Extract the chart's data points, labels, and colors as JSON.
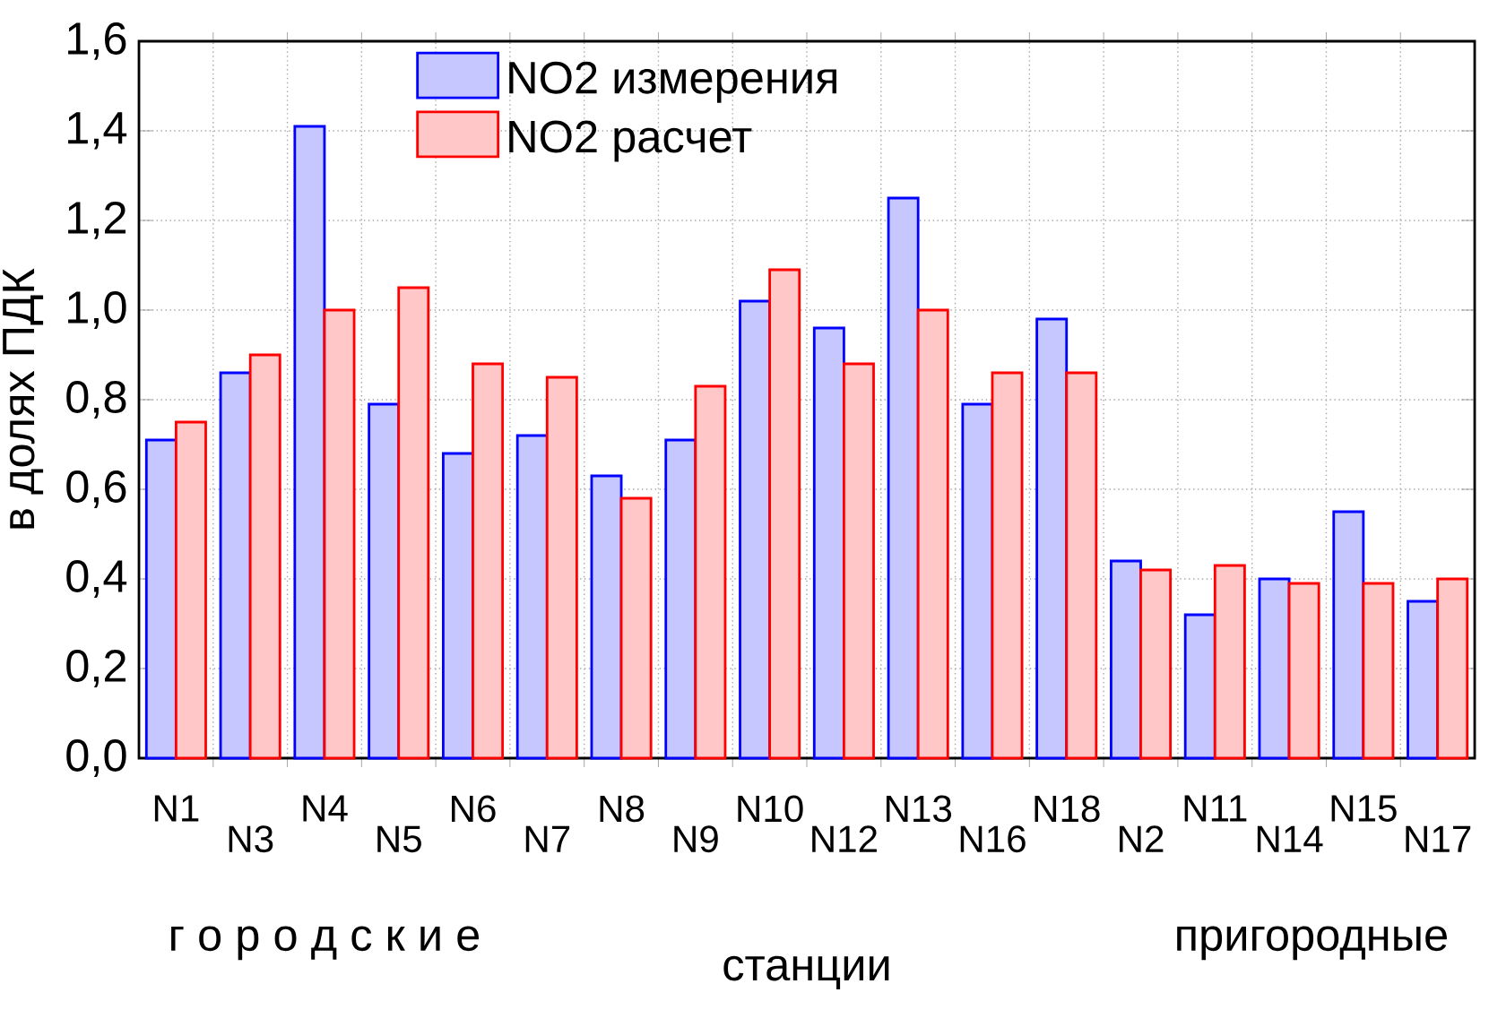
{
  "chart_data": {
    "type": "bar",
    "xlabel": "станции",
    "ylabel": "в долях ПДК",
    "categories": [
      "N1",
      "N3",
      "N4",
      "N5",
      "N6",
      "N7",
      "N8",
      "N9",
      "N10",
      "N12",
      "N13",
      "N16",
      "N18",
      "N2",
      "N11",
      "N14",
      "N15",
      "N17"
    ],
    "series": [
      {
        "name": "NO2 измерения",
        "color": "#0000ff",
        "values": [
          0.71,
          0.86,
          1.41,
          0.79,
          0.68,
          0.72,
          0.63,
          0.71,
          1.02,
          0.96,
          1.25,
          0.79,
          0.98,
          0.44,
          0.32,
          0.4,
          0.55,
          0.35
        ]
      },
      {
        "name": "NO2 расчет",
        "color": "#ff0000",
        "values": [
          0.75,
          0.9,
          1.0,
          1.05,
          0.88,
          0.85,
          0.58,
          0.83,
          1.09,
          0.88,
          1.0,
          0.86,
          0.86,
          0.42,
          0.43,
          0.39,
          0.39,
          0.4
        ]
      }
    ],
    "ylim": [
      0,
      1.6
    ],
    "yticks": [
      {
        "value": 0,
        "label": "0,0"
      },
      {
        "value": 0.2,
        "label": "0,2"
      },
      {
        "value": 0.4,
        "label": "0,4"
      },
      {
        "value": 0.6,
        "label": "0,6"
      },
      {
        "value": 0.8,
        "label": "0,8"
      },
      {
        "value": 1.0,
        "label": "1,0"
      },
      {
        "value": 1.2,
        "label": "1,2"
      },
      {
        "value": 1.4,
        "label": "1,4"
      },
      {
        "value": 1.6,
        "label": "1,6"
      }
    ],
    "annotations": [
      "г о р о д с к и е",
      "пригородные"
    ],
    "grid": true,
    "legend": "top left"
  }
}
